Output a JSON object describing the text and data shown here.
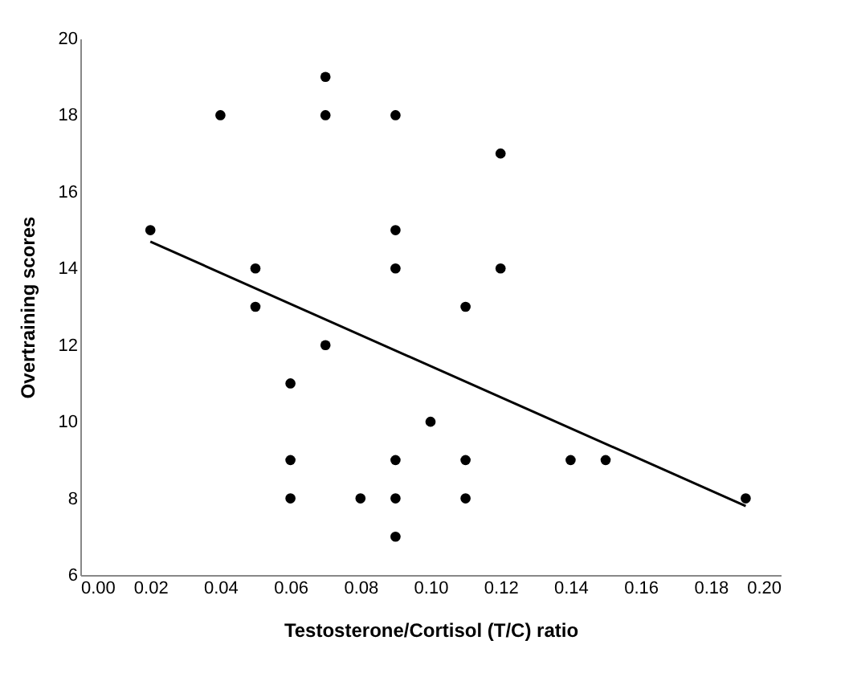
{
  "chart_data": {
    "type": "scatter",
    "xlabel": "Testosterone/Cortisol (T/C) ratio",
    "ylabel": "Overtraining scores",
    "xlim": [
      0,
      0.2
    ],
    "xticks": [
      {
        "value": 0,
        "label": "0.00"
      },
      {
        "value": 0.02,
        "label": "0.02"
      },
      {
        "value": 0.04,
        "label": "0.04"
      },
      {
        "value": 0.06,
        "label": "0.06"
      },
      {
        "value": 0.08,
        "label": "0.08"
      },
      {
        "value": 0.1,
        "label": "0.10"
      },
      {
        "value": 0.12,
        "label": "0.12"
      },
      {
        "value": 0.14,
        "label": "0.14"
      },
      {
        "value": 0.16,
        "label": "0.16"
      },
      {
        "value": 0.18,
        "label": "0.18"
      },
      {
        "value": 0.2,
        "label": "0.20"
      }
    ],
    "ylim": [
      6,
      20
    ],
    "yticks": [
      6,
      8,
      10,
      12,
      14,
      16,
      18,
      20
    ],
    "grid": false,
    "marker": "circle",
    "series": [
      {
        "color": "#000000",
        "x": [
          0.02,
          0.04,
          0.05,
          0.05,
          0.06,
          0.06,
          0.06,
          0.07,
          0.07,
          0.07,
          0.08,
          0.09,
          0.09,
          0.09,
          0.09,
          0.09,
          0.09,
          0.1,
          0.11,
          0.11,
          0.11,
          0.12,
          0.12,
          0.14,
          0.15,
          0.19
        ],
        "values": [
          15,
          18,
          14,
          13,
          11,
          9,
          8,
          19,
          18,
          12,
          8,
          18,
          15,
          14,
          9,
          8,
          7,
          10,
          13,
          9,
          8,
          17,
          14,
          9,
          9,
          8
        ]
      },
      {
        "type": "line",
        "marker": "none",
        "color": "#000000",
        "x": [
          0.02,
          0.19
        ],
        "values": [
          14.7,
          7.8
        ]
      }
    ]
  }
}
